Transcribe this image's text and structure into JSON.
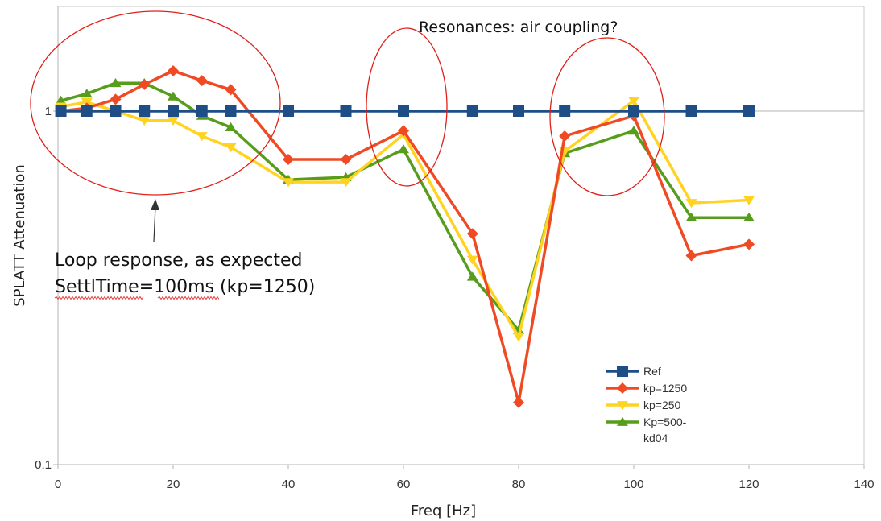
{
  "chart_data": {
    "type": "line",
    "xlabel": "Freq [Hz]",
    "ylabel": "SPLATT Attenuation",
    "x_scale": "linear",
    "y_scale": "log",
    "xlim": [
      0,
      140
    ],
    "ylim": [
      0.1,
      2
    ],
    "x_ticks": [
      0,
      20,
      40,
      60,
      80,
      100,
      120,
      140
    ],
    "x_tick_labels": [
      "0",
      "20",
      "40",
      "60",
      "80",
      "100",
      "120",
      "140"
    ],
    "y_ticks": [
      0.1,
      1
    ],
    "y_tick_labels": [
      "0.1",
      "1"
    ],
    "grid": "horizontal major lines",
    "legend_placement": "lower-right",
    "series": [
      {
        "name": "Ref",
        "color": "#1f4e87",
        "marker": "square",
        "x": [
          0.5,
          5,
          10,
          15,
          20,
          25,
          30,
          40,
          50,
          60,
          72,
          80,
          88,
          100,
          110,
          120
        ],
        "y": [
          1,
          1,
          1,
          1,
          1,
          1,
          1,
          1,
          1,
          1,
          1,
          1,
          1,
          1,
          1,
          1
        ]
      },
      {
        "name": "kp=1250",
        "color": "#ef4a23",
        "marker": "diamond",
        "x": [
          0.5,
          5,
          10,
          15,
          20,
          25,
          30,
          40,
          50,
          60,
          72,
          80,
          88,
          100,
          110,
          120
        ],
        "y": [
          1,
          1.02,
          1.08,
          1.19,
          1.3,
          1.22,
          1.15,
          0.73,
          0.73,
          0.88,
          0.45,
          0.15,
          0.85,
          0.97,
          0.39,
          0.42
        ]
      },
      {
        "name": "kp=250",
        "color": "#ffd320",
        "marker": "triangle-down",
        "x": [
          0.5,
          5,
          10,
          15,
          20,
          25,
          30,
          40,
          50,
          60,
          72,
          80,
          88,
          100,
          110,
          120
        ],
        "y": [
          1.03,
          1.06,
          1,
          0.94,
          0.94,
          0.85,
          0.79,
          0.63,
          0.63,
          0.86,
          0.38,
          0.23,
          0.77,
          1.07,
          0.55,
          0.56
        ]
      },
      {
        "name": "Kp=500-kd04",
        "color": "#579d1c",
        "marker": "triangle-up",
        "x": [
          0.5,
          5,
          10,
          15,
          20,
          25,
          30,
          40,
          50,
          60,
          72,
          80,
          88,
          100,
          110,
          120
        ],
        "y": [
          1.07,
          1.12,
          1.2,
          1.2,
          1.1,
          0.97,
          0.9,
          0.64,
          0.65,
          0.78,
          0.34,
          0.24,
          0.76,
          0.88,
          0.5,
          0.5
        ]
      }
    ],
    "annotations": [
      {
        "text": "Resonances: air coupling?"
      },
      {
        "text": "Loop response, as expected"
      },
      {
        "text": "SettlTime=100ms (kp=1250)"
      }
    ],
    "highlight_color": "#e0201a"
  }
}
